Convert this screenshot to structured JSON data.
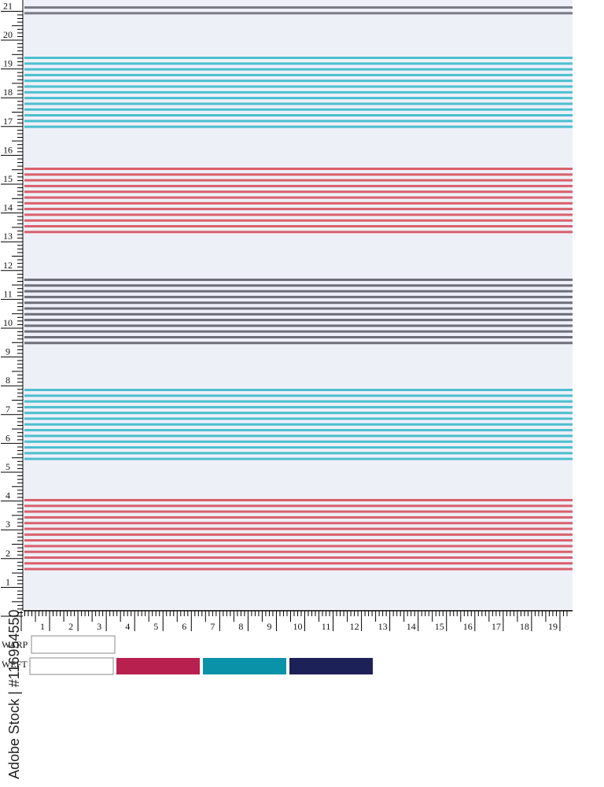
{
  "ruler": {
    "y_labels": [
      1,
      2,
      3,
      4,
      5,
      6,
      7,
      8,
      9,
      10,
      11,
      12,
      13,
      14,
      15,
      16,
      17,
      18,
      19,
      20,
      21
    ],
    "x_labels": [
      1,
      2,
      3,
      4,
      5,
      6,
      7,
      8,
      9,
      10,
      11,
      12,
      13,
      14,
      15,
      16,
      17,
      18,
      19
    ]
  },
  "legend": {
    "warp": "WARP",
    "weft": "WEFT"
  },
  "watermark": "Adobe Stock | #116954550"
}
